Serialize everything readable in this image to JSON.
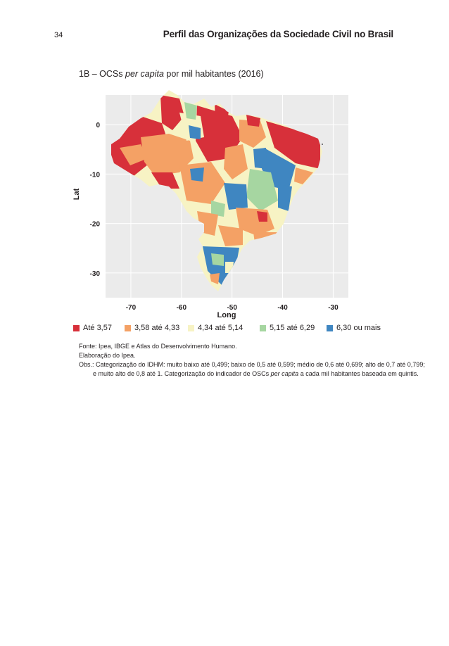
{
  "page": {
    "number": "34",
    "running_header": "Perfil das Organizações da Sociedade Civil no Brasil"
  },
  "figure": {
    "title_prefix": "1B – OCSs ",
    "title_italic": "per capita",
    "title_suffix": " por mil habitantes (2016)"
  },
  "map": {
    "xlabel": "Long",
    "ylabel": "Lat",
    "x_ticks": [
      "-70",
      "-60",
      "-50",
      "-40",
      "-30"
    ],
    "y_ticks": [
      "0",
      "-10",
      "-20",
      "-30"
    ],
    "background_color": "#ebebeb",
    "grid": true,
    "x_range": [
      -75,
      -27
    ],
    "y_range": [
      -35,
      6
    ]
  },
  "legend": [
    {
      "label": "Até 3,57",
      "color": "#d7303a"
    },
    {
      "label": "3,58 até 4,33",
      "color": "#f4a165"
    },
    {
      "label": "4,34 até 5,14",
      "color": "#f7f3c4"
    },
    {
      "label": "5,15 até 6,29",
      "color": "#a6d6a1"
    },
    {
      "label": "6,30 ou mais",
      "color": "#3f86c1"
    }
  ],
  "notes": {
    "source": "Fonte: Ipea, IBGE e Atlas do Desenvolvimento Humano.",
    "elaboration": "Elaboração do Ipea.",
    "obs_line1": "Obs.: Categorização do IDHM: muito baixo até 0,499; baixo de 0,5 até 0,599; médio de 0,6 até 0,699; alto de 0,7 até 0,799;",
    "obs_line2_prefix": "e muito alto de 0,8 até 1. Categorização do indicador de OSCs ",
    "obs_line2_italic": "per capita",
    "obs_line2_suffix": " a cada mil habitantes baseada em quintis."
  }
}
